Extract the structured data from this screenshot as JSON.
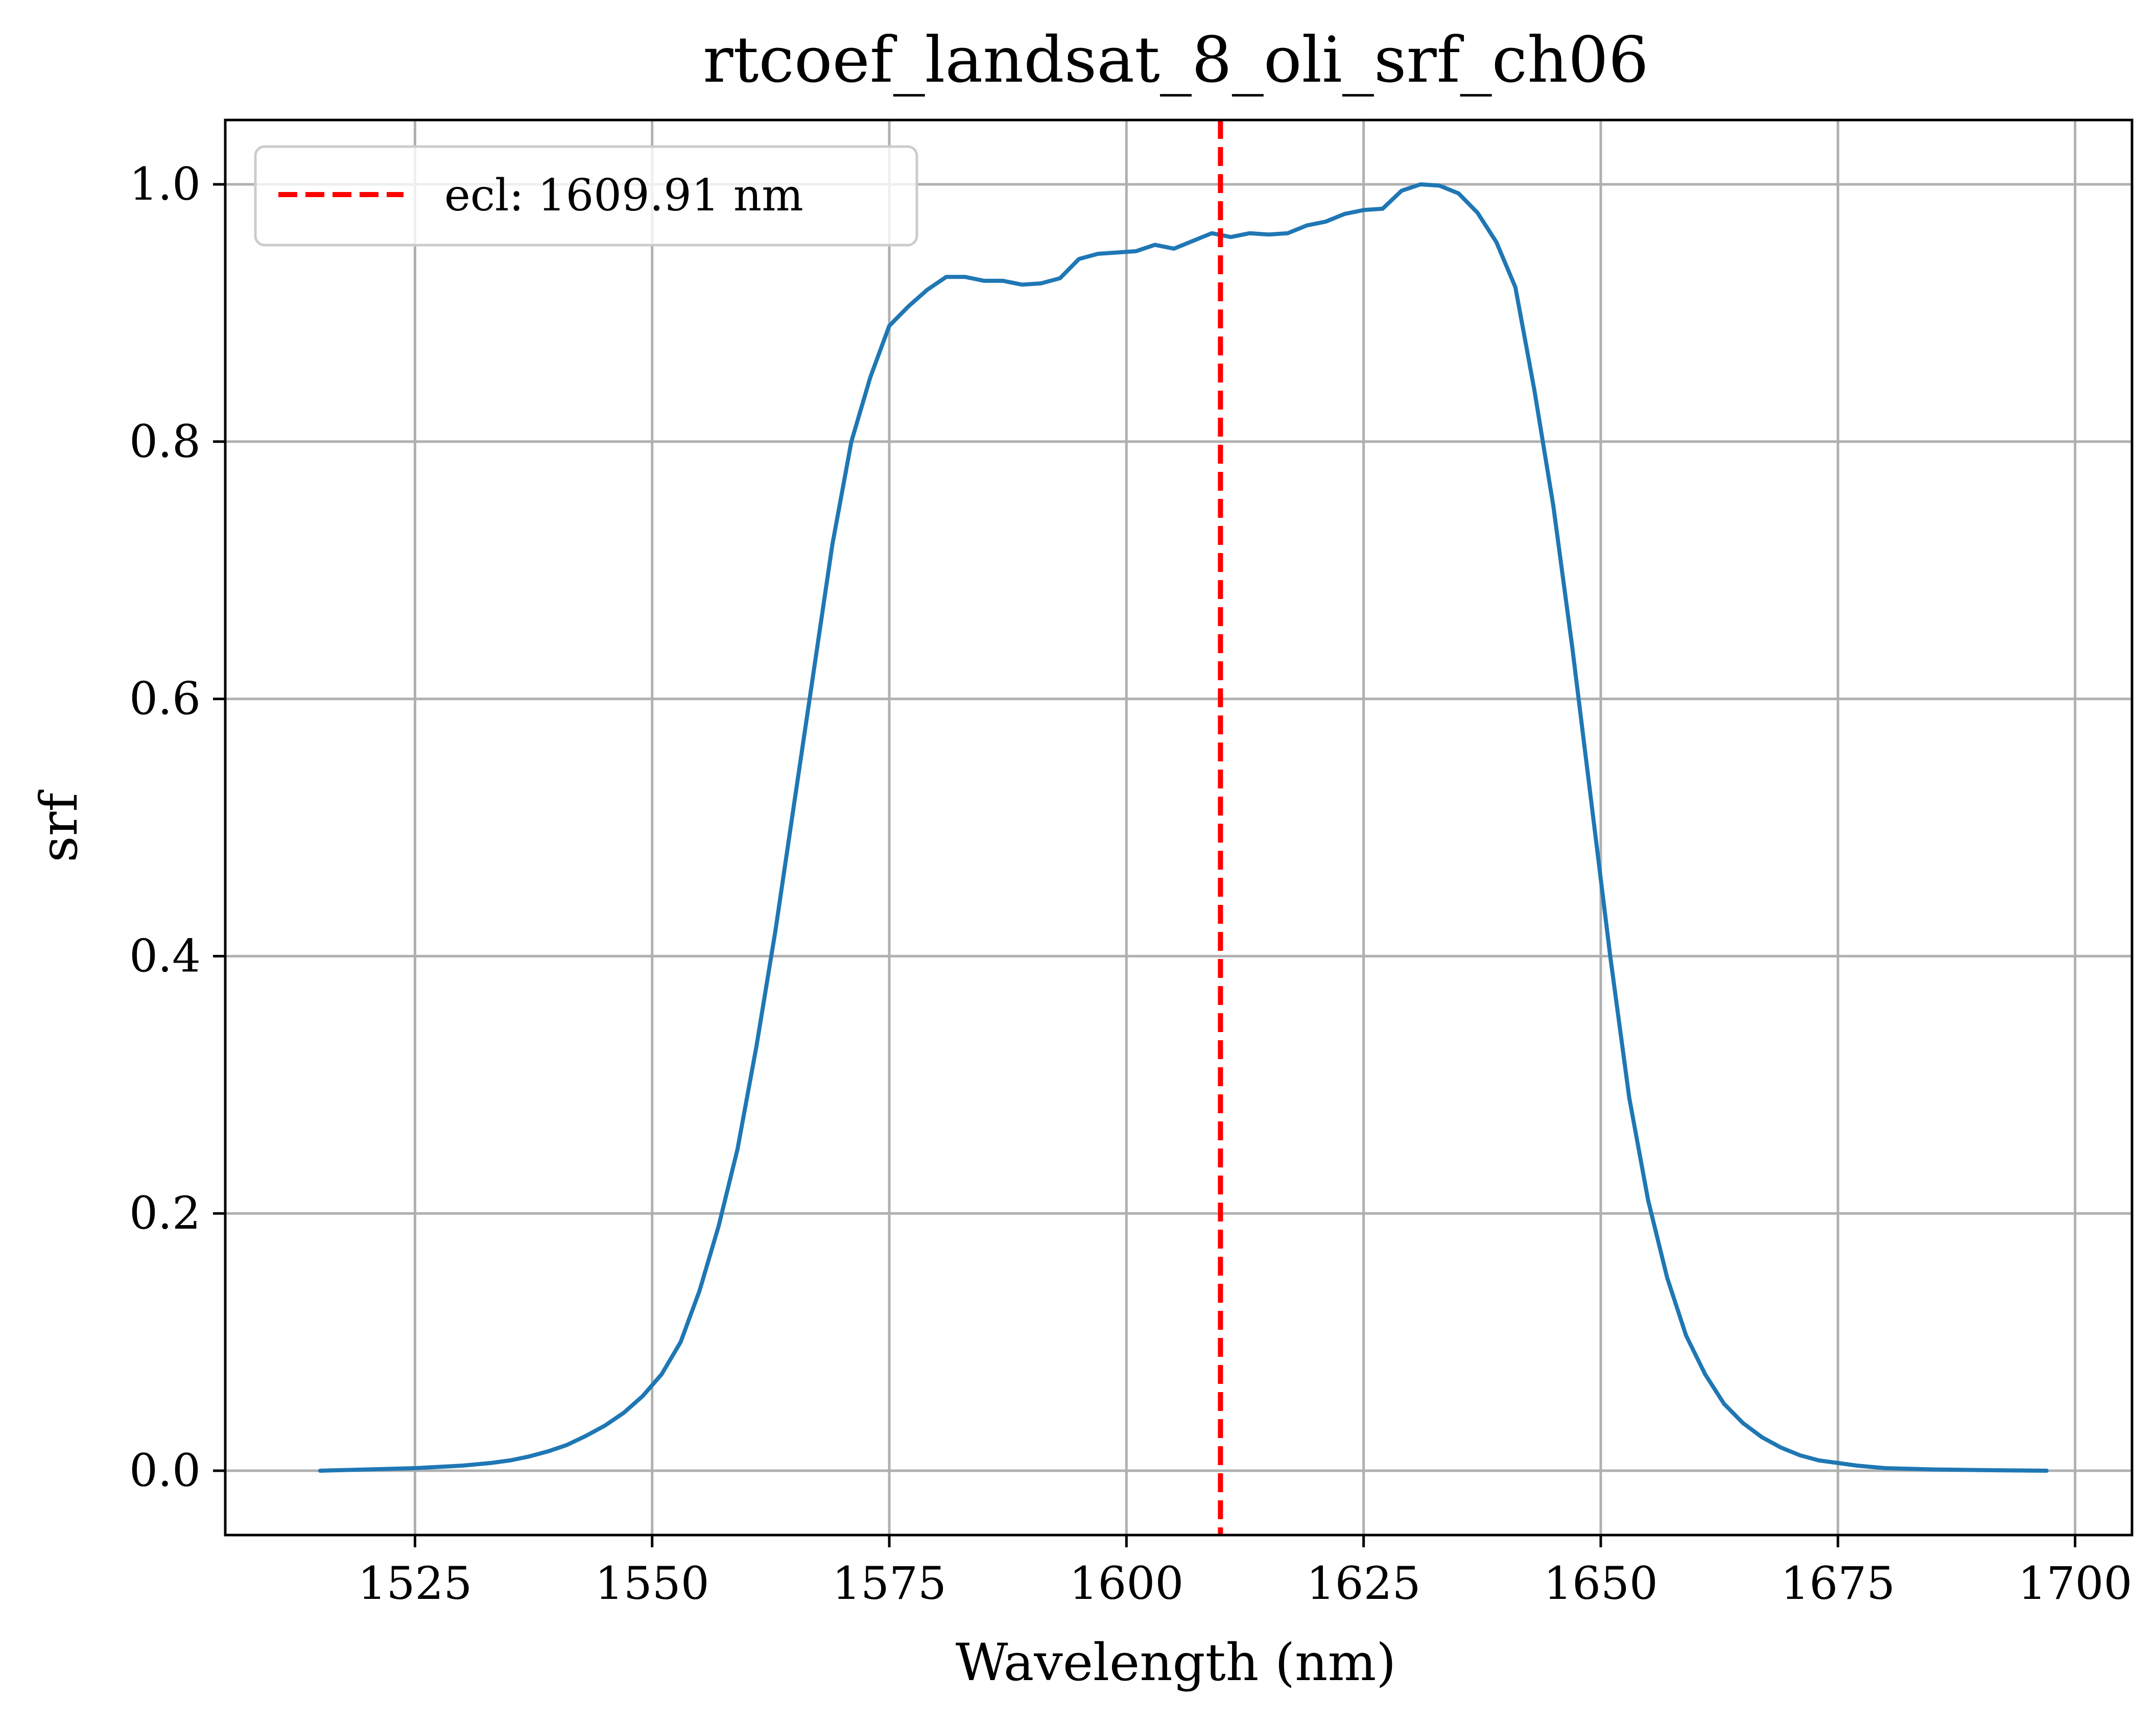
{
  "chart_data": {
    "type": "line",
    "title": "rtcoef_landsat_8_oli_srf_ch06",
    "xlabel": "Wavelength (nm)",
    "ylabel": "srf",
    "xlim": [
      1505,
      1706
    ],
    "ylim": [
      -0.05,
      1.05
    ],
    "xticks": [
      1525,
      1550,
      1575,
      1600,
      1625,
      1650,
      1675,
      1700
    ],
    "xtick_labels": [
      "1525",
      "1550",
      "1575",
      "1600",
      "1625",
      "1650",
      "1675",
      "1700"
    ],
    "yticks": [
      0.0,
      0.2,
      0.4,
      0.6,
      0.8,
      1.0
    ],
    "ytick_labels": [
      "0.0",
      "0.2",
      "0.4",
      "0.6",
      "0.8",
      "1.0"
    ],
    "grid": true,
    "legend_position": "top-left",
    "series": [
      {
        "color": "#1f77b4",
        "x": [
          1515,
          1520,
          1525,
          1530,
          1533,
          1535,
          1537,
          1539,
          1541,
          1543,
          1545,
          1547,
          1549,
          1551,
          1553,
          1555,
          1557,
          1559,
          1561,
          1563,
          1565,
          1567,
          1569,
          1571,
          1573,
          1575,
          1577,
          1579,
          1581,
          1583,
          1585,
          1587,
          1589,
          1591,
          1593,
          1595,
          1597,
          1599,
          1601,
          1603,
          1605,
          1607,
          1609,
          1611,
          1613,
          1615,
          1617,
          1619,
          1621,
          1623,
          1625,
          1627,
          1629,
          1631,
          1633,
          1635,
          1637,
          1639,
          1641,
          1643,
          1645,
          1647,
          1649,
          1651,
          1653,
          1655,
          1657,
          1659,
          1661,
          1663,
          1665,
          1667,
          1669,
          1671,
          1673,
          1675,
          1677,
          1680,
          1685,
          1690,
          1697
        ],
        "y": [
          0.0,
          0.001,
          0.002,
          0.004,
          0.006,
          0.008,
          0.011,
          0.015,
          0.02,
          0.027,
          0.035,
          0.045,
          0.058,
          0.075,
          0.1,
          0.14,
          0.19,
          0.25,
          0.33,
          0.42,
          0.52,
          0.62,
          0.72,
          0.8,
          0.85,
          0.89,
          0.905,
          0.918,
          0.928,
          0.928,
          0.925,
          0.925,
          0.922,
          0.923,
          0.927,
          0.942,
          0.946,
          0.947,
          0.948,
          0.953,
          0.95,
          0.956,
          0.962,
          0.959,
          0.962,
          0.961,
          0.962,
          0.968,
          0.971,
          0.977,
          0.98,
          0.981,
          0.995,
          1.0,
          0.999,
          0.993,
          0.978,
          0.955,
          0.92,
          0.84,
          0.75,
          0.64,
          0.52,
          0.4,
          0.29,
          0.21,
          0.15,
          0.105,
          0.075,
          0.052,
          0.037,
          0.026,
          0.018,
          0.012,
          0.008,
          0.006,
          0.004,
          0.002,
          0.001,
          0.0005,
          0.0
        ]
      },
      {
        "name": "ecl: 1609.91 nm",
        "color": "#ff0000",
        "style": "dashed",
        "x": [
          1609.91,
          1609.91
        ],
        "y": [
          -0.05,
          1.05
        ]
      }
    ]
  }
}
